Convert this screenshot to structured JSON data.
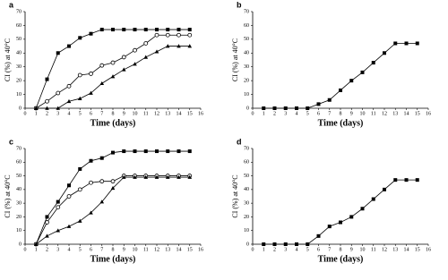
{
  "chart_data": [
    {
      "type": "line",
      "label": "a",
      "xlabel": "Time (days)",
      "ylabel": "CI (%) at 40°C",
      "xlim": [
        0,
        16
      ],
      "xticks": [
        0,
        1,
        2,
        3,
        4,
        5,
        6,
        7,
        8,
        9,
        10,
        11,
        12,
        13,
        14,
        15,
        16
      ],
      "ylim": [
        0,
        70
      ],
      "yticks": [
        0,
        10,
        20,
        30,
        40,
        50,
        60,
        70
      ],
      "x": [
        1,
        2,
        3,
        4,
        5,
        6,
        7,
        8,
        9,
        10,
        11,
        12,
        13,
        14,
        15
      ],
      "series": [
        {
          "marker": "square",
          "color": "#000000",
          "values": [
            0,
            21,
            40,
            45,
            51,
            54,
            57,
            57,
            57,
            57,
            57,
            57,
            57,
            57,
            57
          ]
        },
        {
          "marker": "circle",
          "color": "#000000",
          "values": [
            0,
            5,
            11,
            16,
            24,
            25,
            31,
            33,
            37,
            42,
            47,
            53,
            53,
            53,
            53
          ]
        },
        {
          "marker": "triangle",
          "color": "#000000",
          "values": [
            0,
            0,
            0,
            5,
            7,
            11,
            18,
            23,
            28,
            32,
            37,
            41,
            45,
            45,
            45
          ]
        }
      ]
    },
    {
      "type": "line",
      "label": "b",
      "xlabel": "Time (days)",
      "ylabel": "CI (%) at 40°C",
      "xlim": [
        0,
        16
      ],
      "xticks": [
        0,
        1,
        2,
        3,
        4,
        5,
        6,
        7,
        8,
        9,
        10,
        11,
        12,
        13,
        14,
        15,
        16
      ],
      "ylim": [
        0,
        70
      ],
      "yticks": [
        0,
        10,
        20,
        30,
        40,
        50,
        60,
        70
      ],
      "x": [
        1,
        2,
        3,
        4,
        5,
        6,
        7,
        8,
        9,
        10,
        11,
        12,
        13,
        14,
        15
      ],
      "series": [
        {
          "marker": "square",
          "color": "#000000",
          "values": [
            0,
            0,
            0,
            0,
            0,
            3,
            6,
            13,
            20,
            26,
            33,
            40,
            47,
            47,
            47
          ]
        }
      ]
    },
    {
      "type": "line",
      "label": "c",
      "xlabel": "Time (days)",
      "ylabel": "CI (%) at 40°C",
      "xlim": [
        0,
        16
      ],
      "xticks": [
        0,
        1,
        2,
        3,
        4,
        5,
        6,
        7,
        8,
        9,
        10,
        11,
        12,
        13,
        14,
        15,
        16
      ],
      "ylim": [
        0,
        70
      ],
      "yticks": [
        0,
        10,
        20,
        30,
        40,
        50,
        60,
        70
      ],
      "x": [
        1,
        2,
        3,
        4,
        5,
        6,
        7,
        8,
        9,
        10,
        11,
        12,
        13,
        14,
        15
      ],
      "series": [
        {
          "marker": "square",
          "color": "#000000",
          "values": [
            0,
            20,
            31,
            43,
            55,
            61,
            63,
            67,
            68,
            68,
            68,
            68,
            68,
            68,
            68
          ]
        },
        {
          "marker": "circle",
          "color": "#000000",
          "values": [
            0,
            16,
            27,
            35,
            40,
            45,
            46,
            46,
            50,
            50,
            50,
            50,
            50,
            50,
            50
          ]
        },
        {
          "marker": "triangle",
          "color": "#000000",
          "values": [
            0,
            6,
            10,
            13,
            17,
            23,
            31,
            41,
            49,
            49,
            49,
            49,
            49,
            49,
            49
          ]
        }
      ]
    },
    {
      "type": "line",
      "label": "d",
      "xlabel": "Time (days)",
      "ylabel": "CI (%) at 40°C",
      "xlim": [
        0,
        16
      ],
      "xticks": [
        0,
        1,
        2,
        3,
        4,
        5,
        6,
        7,
        8,
        9,
        10,
        11,
        12,
        13,
        14,
        15,
        16
      ],
      "ylim": [
        0,
        70
      ],
      "yticks": [
        0,
        10,
        20,
        30,
        40,
        50,
        60,
        70
      ],
      "x": [
        1,
        2,
        3,
        4,
        5,
        6,
        7,
        8,
        9,
        10,
        11,
        12,
        13,
        14,
        15
      ],
      "series": [
        {
          "marker": "square",
          "color": "#000000",
          "values": [
            0,
            0,
            0,
            0,
            0,
            6,
            13,
            16,
            20,
            26,
            33,
            40,
            47,
            47,
            47
          ]
        }
      ]
    }
  ]
}
